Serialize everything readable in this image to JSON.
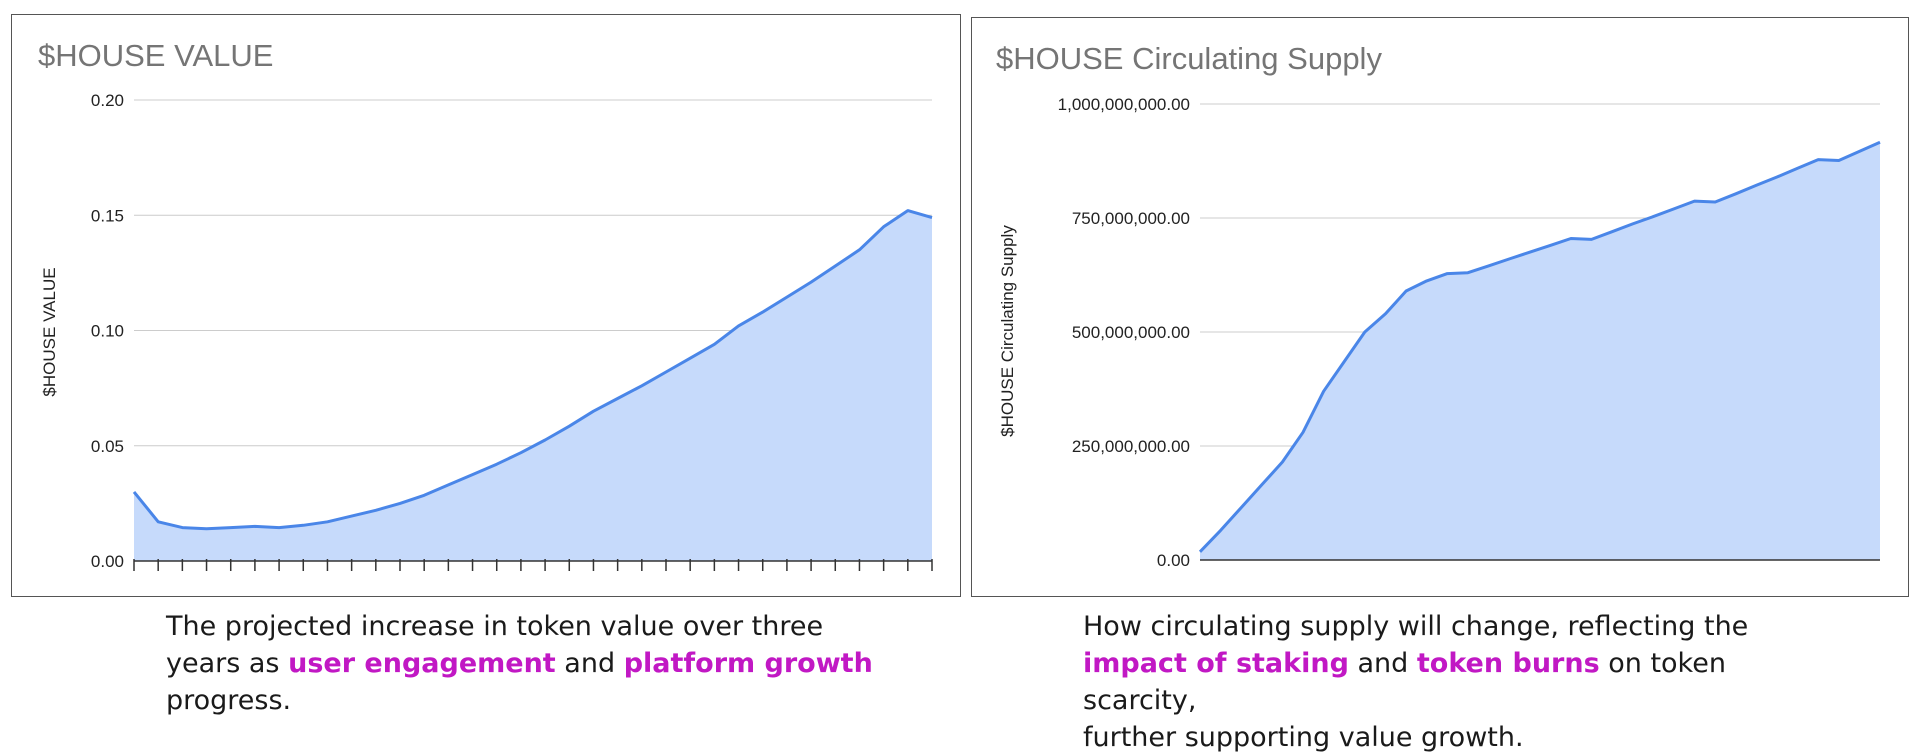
{
  "colors": {
    "line": "#4a86e8",
    "fill": "#c6dafb",
    "grid": "#cccccc",
    "highlight": "#c118c4"
  },
  "chart_data": [
    {
      "type": "area",
      "title": "$HOUSE VALUE",
      "ylabel": "$HOUSE VALUE",
      "xlabel": "",
      "yticks": [
        "0.00",
        "0.05",
        "0.10",
        "0.15",
        "0.20"
      ],
      "ylim": [
        0,
        0.2
      ],
      "grid": true,
      "x": [
        1,
        2,
        3,
        4,
        5,
        6,
        7,
        8,
        9,
        10,
        11,
        12,
        13,
        14,
        15,
        16,
        17,
        18,
        19,
        20,
        21,
        22,
        23,
        24,
        25,
        26,
        27,
        28,
        29,
        30,
        31,
        32,
        33,
        34
      ],
      "values": [
        0.03,
        0.017,
        0.0145,
        0.014,
        0.0145,
        0.015,
        0.0145,
        0.0155,
        0.017,
        0.0195,
        0.022,
        0.025,
        0.0285,
        0.033,
        0.0375,
        0.042,
        0.047,
        0.0525,
        0.0585,
        0.065,
        0.0705,
        0.076,
        0.082,
        0.088,
        0.094,
        0.102,
        0.108,
        0.1145,
        0.121,
        0.128,
        0.135,
        0.145,
        0.152,
        0.149
      ]
    },
    {
      "type": "area",
      "title": "$HOUSE Circulating Supply",
      "ylabel": "$HOUSE Circulating Supply",
      "xlabel": "",
      "yticks": [
        "0.00",
        "250,000,000.00",
        "500,000,000.00",
        "750,000,000.00",
        "1,000,000,000.00"
      ],
      "ylim": [
        0,
        1000000000
      ],
      "grid": true,
      "x": [
        1,
        2,
        3,
        4,
        5,
        6,
        7,
        8,
        9,
        10,
        11,
        12,
        13,
        14,
        15,
        16,
        17,
        18,
        19,
        20,
        21,
        22,
        23,
        24,
        25,
        26,
        27,
        28,
        29,
        30,
        31,
        32,
        33,
        34
      ],
      "values": [
        18000000,
        65000000,
        115000000,
        165000000,
        215000000,
        280000000,
        370000000,
        435000000,
        500000000,
        540000000,
        590000000,
        612000000,
        628000000,
        630000000,
        645000000,
        660000000,
        675000000,
        690000000,
        705000000,
        703000000,
        720000000,
        737000000,
        753000000,
        770000000,
        787000000,
        785000000,
        803000000,
        822000000,
        840000000,
        859000000,
        878000000,
        876000000,
        896000000,
        916000000
      ]
    }
  ],
  "captions": [
    {
      "line1": "The projected increase in token value over three",
      "line2a": "years as ",
      "hl1": "user engagement",
      "line2b": " and ",
      "hl2": "platform growth",
      "line3": "progress."
    },
    {
      "line1": "How circulating supply will change, reflecting the",
      "hl1": "impact of staking",
      "line2b": " and ",
      "hl2": "token burns",
      "line2c": " on token scarcity,",
      "line3": "further supporting value growth."
    }
  ]
}
